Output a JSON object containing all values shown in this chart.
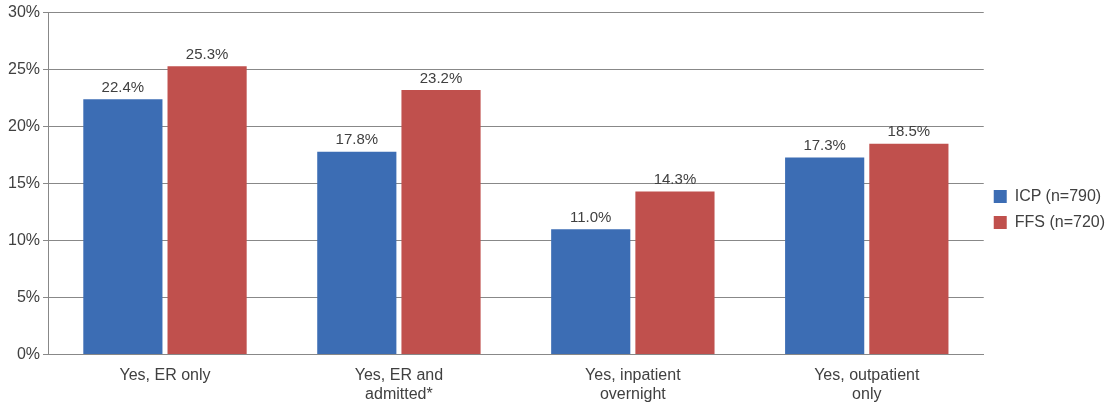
{
  "chart_data": {
    "type": "bar",
    "categories": [
      "Yes, ER only",
      "Yes, ER and admitted*",
      "Yes, inpatient overnight",
      "Yes, outpatient only"
    ],
    "series": [
      {
        "name": "ICP (n=790)",
        "color": "#3c6db4",
        "values": [
          22.4,
          17.8,
          11.0,
          17.3
        ],
        "value_labels": [
          "22.4%",
          "17.8%",
          "11.0%",
          "17.3%"
        ]
      },
      {
        "name": "FFS (n=720)",
        "color": "#c0504d",
        "values": [
          25.3,
          23.2,
          14.3,
          18.5
        ],
        "value_labels": [
          "25.3%",
          "23.2%",
          "14.3%",
          "18.5%"
        ]
      }
    ],
    "ylim": [
      0,
      30
    ],
    "yticks": [
      {
        "value": 0,
        "label": "0%"
      },
      {
        "value": 5,
        "label": "5%"
      },
      {
        "value": 10,
        "label": "10%"
      },
      {
        "value": 15,
        "label": "15%"
      },
      {
        "value": 20,
        "label": "20%"
      },
      {
        "value": 25,
        "label": "25%"
      },
      {
        "value": 30,
        "label": "30%"
      }
    ],
    "grid": "y",
    "legend": "right"
  }
}
